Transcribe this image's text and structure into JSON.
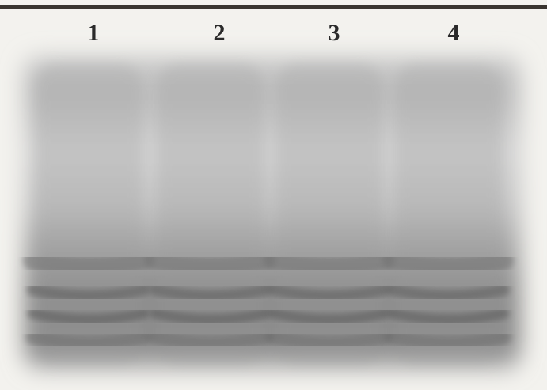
{
  "lane_labels": [
    "1",
    "2",
    "3",
    "4"
  ]
}
